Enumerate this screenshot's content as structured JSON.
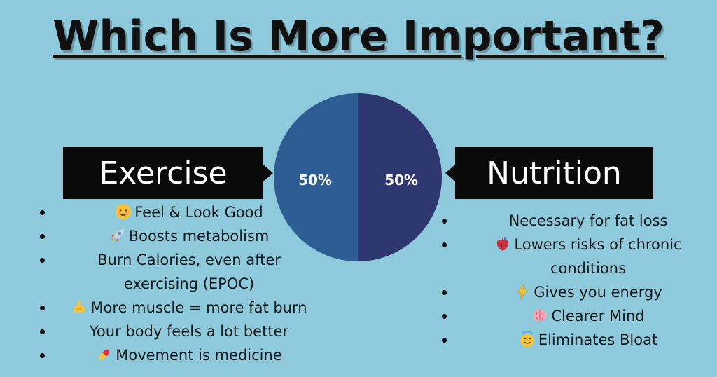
{
  "title": "Which Is More Important?",
  "chart_data": {
    "type": "pie",
    "slices": [
      {
        "label": "Exercise",
        "value": 50,
        "display": "50%",
        "color": "#2d5d93"
      },
      {
        "label": "Nutrition",
        "value": 50,
        "display": "50%",
        "color": "#2f3770"
      }
    ]
  },
  "exercise": {
    "label": "Exercise",
    "items": [
      {
        "icon": "smiling-face-icon",
        "text": "Feel & Look Good"
      },
      {
        "icon": "rocket-icon",
        "text": "Boosts metabolism"
      },
      {
        "icon": "",
        "text": "Burn Calories, even after"
      },
      {
        "icon": "",
        "text": "exercising (EPOC)",
        "continuation": true
      },
      {
        "icon": "flexed-bicep-icon",
        "text": "More muscle = more fat burn"
      },
      {
        "icon": "",
        "text": "Your body feels a lot better"
      },
      {
        "icon": "pill-icon",
        "text": "Movement is medicine"
      }
    ]
  },
  "nutrition": {
    "label": "Nutrition",
    "items": [
      {
        "icon": "",
        "text": "Necessary for fat loss"
      },
      {
        "icon": "anatomical-heart-icon",
        "text": "Lowers risks of chronic"
      },
      {
        "icon": "",
        "text": "conditions",
        "continuation": true
      },
      {
        "icon": "lightning-icon",
        "text": "Gives you energy"
      },
      {
        "icon": "brain-icon",
        "text": "Clearer Mind"
      },
      {
        "icon": "halo-face-icon",
        "text": "Eliminates Bloat"
      }
    ]
  },
  "colors": {
    "background": "#8fc9dc",
    "label_box": "#0a0a0a",
    "label_text": "#ffffff"
  }
}
